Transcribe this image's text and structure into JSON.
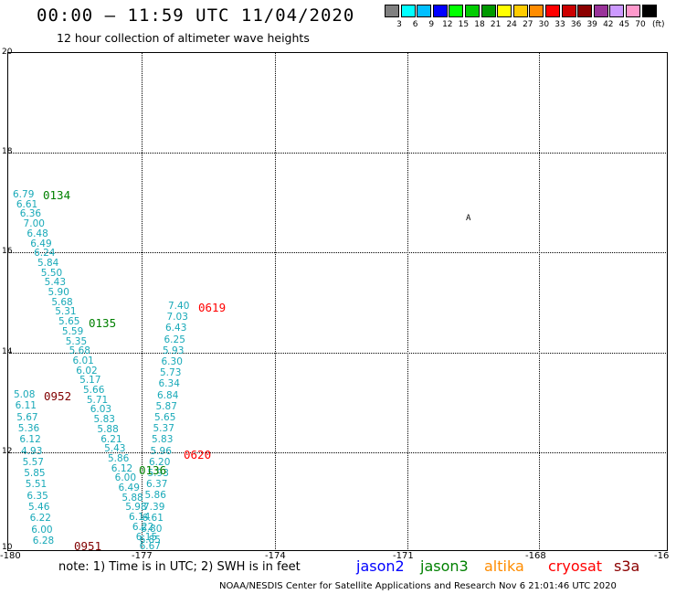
{
  "title": "00:00 – 11:59 UTC 11/04/2020",
  "subtitle": "12 hour collection of altimeter wave heights",
  "legend": {
    "unit": "(ft)",
    "items": [
      {
        "label": "3",
        "color": "#808080"
      },
      {
        "label": "6",
        "color": "#00ffff"
      },
      {
        "label": "9",
        "color": "#00bfff"
      },
      {
        "label": "12",
        "color": "#0000ff"
      },
      {
        "label": "15",
        "color": "#00ff00"
      },
      {
        "label": "18",
        "color": "#00cc00"
      },
      {
        "label": "21",
        "color": "#009900"
      },
      {
        "label": "24",
        "color": "#ffff00"
      },
      {
        "label": "27",
        "color": "#ffcc00"
      },
      {
        "label": "30",
        "color": "#ff8c00"
      },
      {
        "label": "33",
        "color": "#ff0000"
      },
      {
        "label": "36",
        "color": "#cc0000"
      },
      {
        "label": "39",
        "color": "#8b0000"
      },
      {
        "label": "42",
        "color": "#993399"
      },
      {
        "label": "45",
        "color": "#cc99ff"
      },
      {
        "label": "70",
        "color": "#ff99cc"
      },
      {
        "label": "",
        "color": "#000000"
      }
    ]
  },
  "axes": {
    "y_labels": [
      "20",
      "18",
      "16",
      "14",
      "12",
      "10"
    ],
    "x_labels": [
      "-180",
      "-177",
      "-174",
      "-171",
      "-168",
      "-16"
    ]
  },
  "island_marker": "A",
  "passes": [
    {
      "label": "0134",
      "color": "#008000"
    },
    {
      "label": "0135",
      "color": "#008000"
    },
    {
      "label": "0952",
      "color": "#800000"
    },
    {
      "label": "0136",
      "color": "#008000"
    },
    {
      "label": "0951",
      "color": "#800000"
    },
    {
      "label": "0619",
      "color": "#ff0000"
    },
    {
      "label": "0620",
      "color": "#ff0000"
    }
  ],
  "tracks": {
    "track_a": [
      "6.79",
      "6.61",
      "6.36",
      "7.00",
      "6.48",
      "6.49",
      "6.24",
      "5.84",
      "5.50",
      "5.43",
      "5.90",
      "5.68",
      "5.31",
      "5.65",
      "5.59",
      "5.35",
      "5.68",
      "6.01",
      "6.02",
      "5.17",
      "5.66",
      "5.71",
      "6.03",
      "5.83",
      "5.88",
      "6.21",
      "5.43",
      "5.86",
      "6.12",
      "6.00",
      "6.49",
      "5.88",
      "5.98",
      "6.14",
      "6.22",
      "6.15",
      "6.67"
    ],
    "track_b": [
      "5.08",
      "6.11",
      "5.67",
      "5.36",
      "6.12",
      "4.93",
      "5.57",
      "5.85",
      "5.51",
      "6.35",
      "5.46",
      "6.22",
      "6.00",
      "6.28"
    ],
    "track_c": [
      "7.40",
      "7.03",
      "6.43",
      "6.25",
      "5.93",
      "6.30",
      "5.73",
      "6.34",
      "6.84",
      "5.87",
      "5.65",
      "5.37",
      "5.83",
      "5.96",
      "6.20",
      "5.93",
      "6.37",
      "5.86",
      "7.39",
      "6.61",
      "6.80",
      "6.85"
    ]
  },
  "note": "note: 1) Time is in UTC; 2) SWH is in feet",
  "satellites": [
    {
      "name": "jason2",
      "color": "#0000ff"
    },
    {
      "name": "jason3",
      "color": "#008000"
    },
    {
      "name": "altika",
      "color": "#ff8c00"
    },
    {
      "name": "cryosat",
      "color": "#ff0000"
    },
    {
      "name": "s3a",
      "color": "#8b0000"
    }
  ],
  "credit": "NOAA/NESDIS Center for Satellite Applications and Research    Nov  6 21:01:46 UTC 2020"
}
